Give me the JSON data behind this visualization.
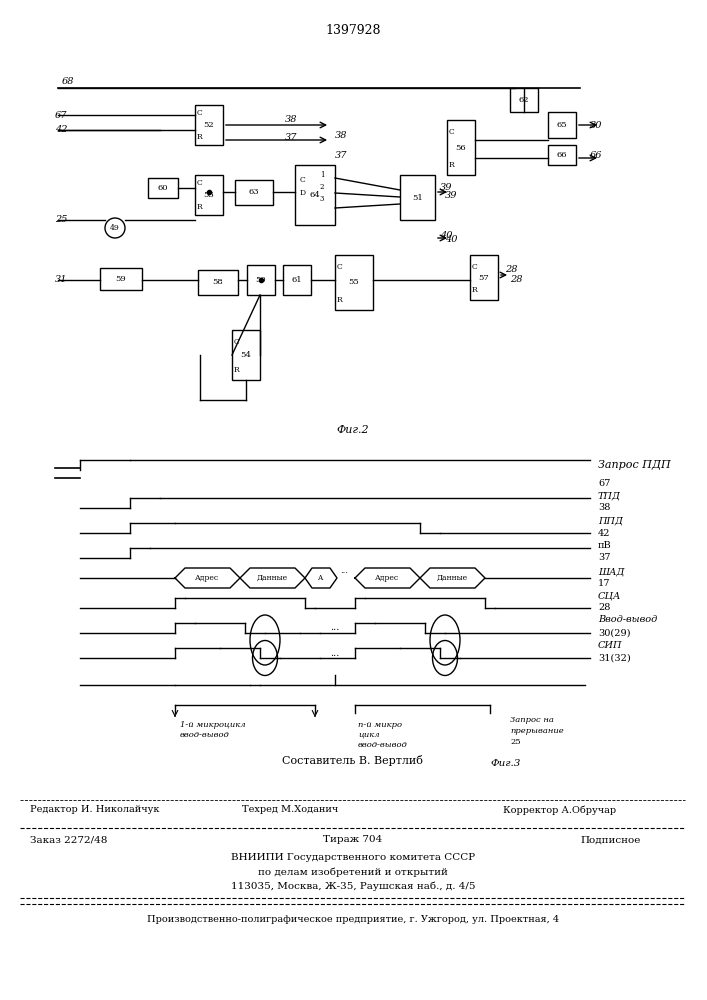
{
  "title": "1397928",
  "fig2_label": "Фиг.2",
  "fig3_label": "Фиг.3",
  "composer": "Составитель В. Вертлиб",
  "editor": "Редактор И. Николайчук",
  "techred": "Техред М.Ходанич",
  "corrector": "Корректор А.Обручар",
  "order": "Заказ 2272/48",
  "tiraz": "Тираж 704",
  "podpisnoe": "Подписное",
  "vnipi_line1": "ВНИИПИ Государственного комитета СССР",
  "vnipi_line2": "по делам изобретений и открытий",
  "vnipi_line3": "113035, Москва, Ж-35, Раушская наб., д. 4/5",
  "factory": "Производственно-полиграфическое предприятие, г. Ужгород, ул. Проектная, 4",
  "bg_color": "#ffffff",
  "line_color": "#000000"
}
